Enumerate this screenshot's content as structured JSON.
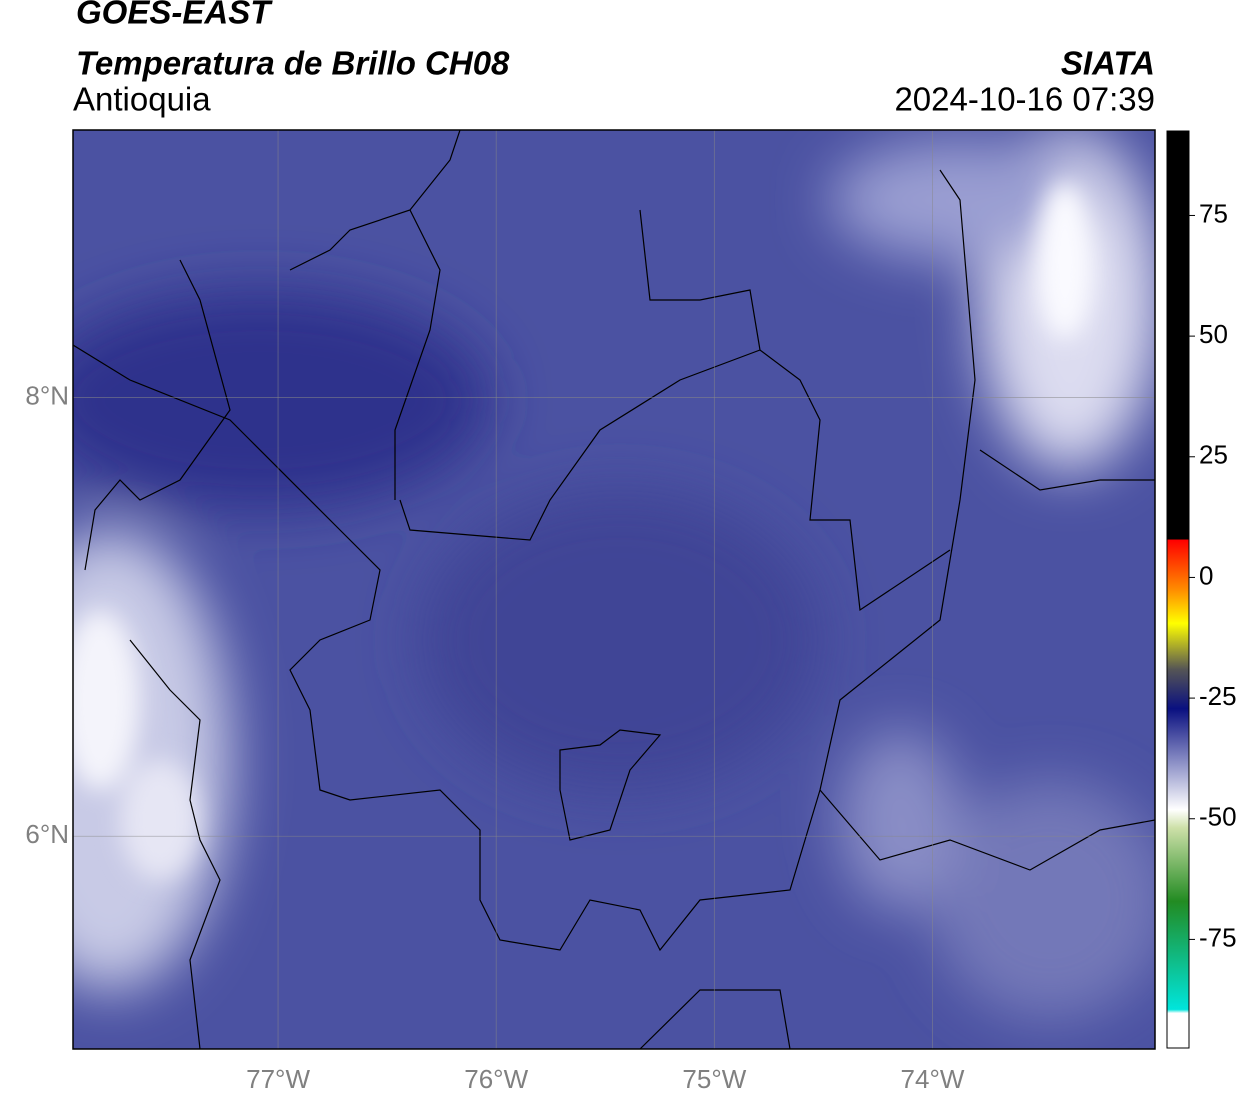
{
  "header": {
    "title": "GOES-EAST",
    "subtitle": "Temperatura de Brillo CH08",
    "region": "Antioquia",
    "source": "SIATA",
    "datetime": "2024-10-16 07:39"
  },
  "map": {
    "xlim": [
      -77.94,
      -72.98
    ],
    "ylim": [
      5.03,
      9.22
    ],
    "xticks": [
      {
        "value": -77,
        "label": "77°W"
      },
      {
        "value": -76,
        "label": "76°W"
      },
      {
        "value": -75,
        "label": "75°W"
      },
      {
        "value": -74,
        "label": "74°W"
      }
    ],
    "yticks": [
      {
        "value": 6,
        "label": "6°N"
      },
      {
        "value": 8,
        "label": "8°N"
      }
    ],
    "grid": true
  },
  "colorbar": {
    "lim": [
      -97.5,
      92.5
    ],
    "ticks": [
      -75,
      -50,
      -25,
      0,
      25,
      50,
      75
    ]
  }
}
